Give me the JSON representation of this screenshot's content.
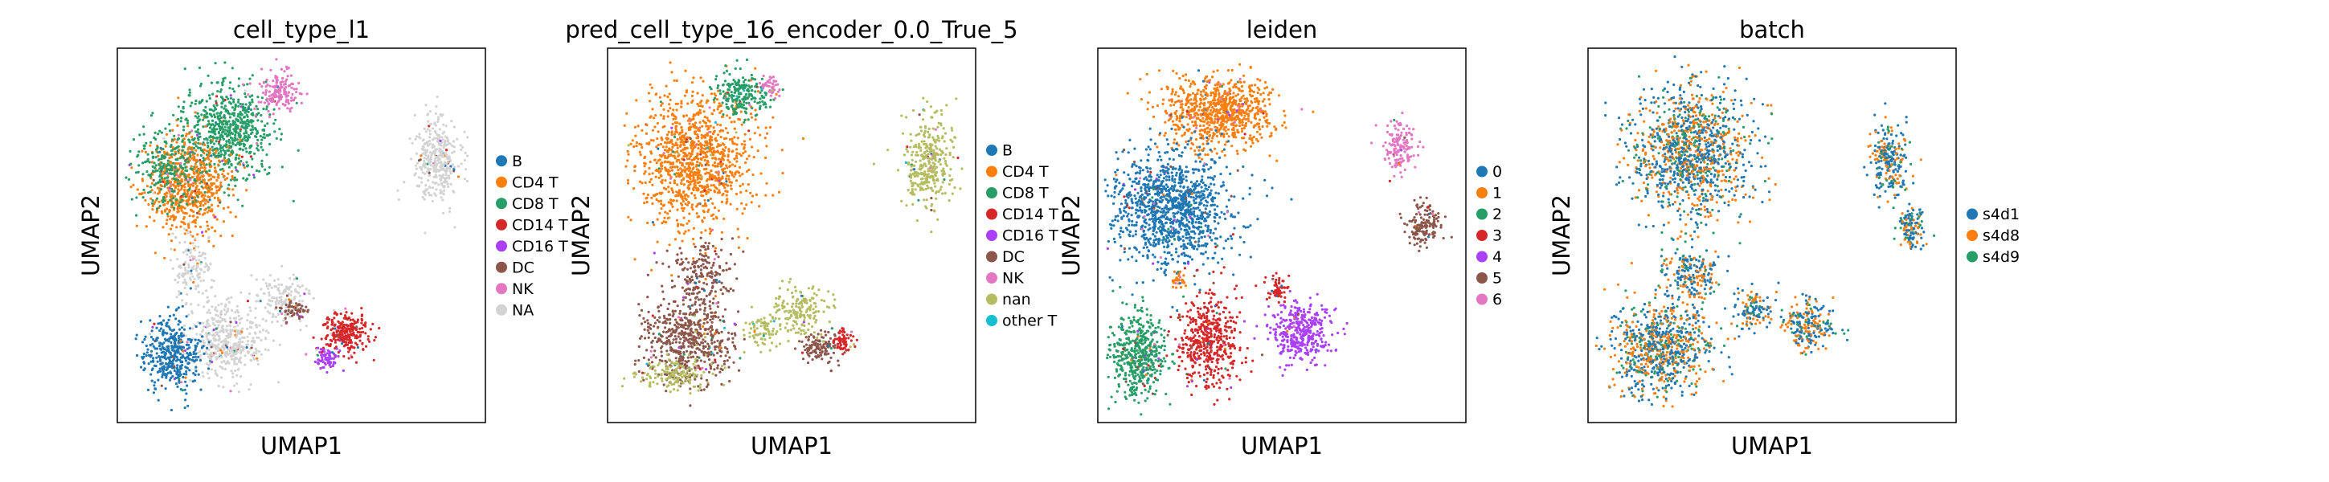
{
  "figure": {
    "background": "#ffffff"
  },
  "chart_data": [
    {
      "type": "scatter",
      "title": "cell_type_l1",
      "xlabel": "UMAP1",
      "ylabel": "UMAP2",
      "ticks": "none",
      "legend_position": "right",
      "legend": [
        {
          "label": "B",
          "color": "#1f77b4"
        },
        {
          "label": "CD4 T",
          "color": "#ff7f0e"
        },
        {
          "label": "CD8 T",
          "color": "#279e68"
        },
        {
          "label": "CD14 T",
          "color": "#d62728"
        },
        {
          "label": "CD16 T",
          "color": "#aa40fc"
        },
        {
          "label": "DC",
          "color": "#8c564b"
        },
        {
          "label": "NK",
          "color": "#e377c2"
        },
        {
          "label": "NA",
          "color": "#d3d3d3"
        }
      ],
      "clusters": [
        {
          "group": "CD8 T",
          "cx": 0.3,
          "cy": 0.78,
          "rx": 0.11,
          "ry": 0.11,
          "n": 700
        },
        {
          "group": "CD4 T",
          "cx": 0.19,
          "cy": 0.63,
          "rx": 0.1,
          "ry": 0.12,
          "n": 650
        },
        {
          "group": "CD8 T",
          "cx": 0.14,
          "cy": 0.68,
          "rx": 0.08,
          "ry": 0.1,
          "n": 250
        },
        {
          "group": "NK",
          "cx": 0.44,
          "cy": 0.88,
          "rx": 0.05,
          "ry": 0.05,
          "n": 160
        },
        {
          "group": "NA",
          "cx": 0.87,
          "cy": 0.7,
          "rx": 0.06,
          "ry": 0.11,
          "n": 360
        },
        {
          "group": "NA",
          "cx": 0.3,
          "cy": 0.22,
          "rx": 0.09,
          "ry": 0.09,
          "n": 450
        },
        {
          "group": "B",
          "cx": 0.15,
          "cy": 0.18,
          "rx": 0.07,
          "ry": 0.09,
          "n": 420
        },
        {
          "group": "NA",
          "cx": 0.45,
          "cy": 0.33,
          "rx": 0.06,
          "ry": 0.06,
          "n": 140
        },
        {
          "group": "CD14 T",
          "cx": 0.62,
          "cy": 0.24,
          "rx": 0.06,
          "ry": 0.05,
          "n": 260
        },
        {
          "group": "CD16 T",
          "cx": 0.57,
          "cy": 0.17,
          "rx": 0.03,
          "ry": 0.03,
          "n": 70
        },
        {
          "group": "DC",
          "cx": 0.48,
          "cy": 0.3,
          "rx": 0.04,
          "ry": 0.03,
          "n": 60
        },
        {
          "group": "NA",
          "cx": 0.2,
          "cy": 0.42,
          "rx": 0.05,
          "ry": 0.08,
          "n": 130
        }
      ]
    },
    {
      "type": "scatter",
      "title": "pred_cell_type_16_encoder_0.0_True_5",
      "xlabel": "UMAP1",
      "ylabel": "UMAP2",
      "ticks": "none",
      "legend_position": "right",
      "legend": [
        {
          "label": "B",
          "color": "#1f77b4"
        },
        {
          "label": "CD4 T",
          "color": "#ff7f0e"
        },
        {
          "label": "CD8 T",
          "color": "#279e68"
        },
        {
          "label": "CD14 T",
          "color": "#d62728"
        },
        {
          "label": "CD16 T",
          "color": "#aa40fc"
        },
        {
          "label": "DC",
          "color": "#8c564b"
        },
        {
          "label": "NK",
          "color": "#e377c2"
        },
        {
          "label": "nan",
          "color": "#b5bd61"
        },
        {
          "label": "other T",
          "color": "#17becf"
        }
      ],
      "clusters": [
        {
          "group": "CD4 T",
          "cx": 0.24,
          "cy": 0.7,
          "rx": 0.14,
          "ry": 0.17,
          "n": 1100
        },
        {
          "group": "CD8 T",
          "cx": 0.36,
          "cy": 0.88,
          "rx": 0.07,
          "ry": 0.06,
          "n": 220
        },
        {
          "group": "NK",
          "cx": 0.44,
          "cy": 0.9,
          "rx": 0.03,
          "ry": 0.03,
          "n": 50
        },
        {
          "group": "nan",
          "cx": 0.87,
          "cy": 0.7,
          "rx": 0.06,
          "ry": 0.11,
          "n": 360
        },
        {
          "group": "DC",
          "cx": 0.22,
          "cy": 0.22,
          "rx": 0.11,
          "ry": 0.11,
          "n": 600
        },
        {
          "group": "DC",
          "cx": 0.26,
          "cy": 0.4,
          "rx": 0.07,
          "ry": 0.07,
          "n": 180
        },
        {
          "group": "nan",
          "cx": 0.52,
          "cy": 0.3,
          "rx": 0.07,
          "ry": 0.06,
          "n": 180
        },
        {
          "group": "nan",
          "cx": 0.18,
          "cy": 0.13,
          "rx": 0.08,
          "ry": 0.04,
          "n": 150
        },
        {
          "group": "DC",
          "cx": 0.58,
          "cy": 0.2,
          "rx": 0.05,
          "ry": 0.04,
          "n": 120
        },
        {
          "group": "CD14 T",
          "cx": 0.64,
          "cy": 0.22,
          "rx": 0.03,
          "ry": 0.03,
          "n": 60
        },
        {
          "group": "nan",
          "cx": 0.42,
          "cy": 0.24,
          "rx": 0.04,
          "ry": 0.04,
          "n": 70
        }
      ]
    },
    {
      "type": "scatter",
      "title": "leiden",
      "xlabel": "UMAP1",
      "ylabel": "UMAP2",
      "ticks": "none",
      "legend_position": "right",
      "legend": [
        {
          "label": "0",
          "color": "#1f77b4"
        },
        {
          "label": "1",
          "color": "#ff7f0e"
        },
        {
          "label": "2",
          "color": "#279e68"
        },
        {
          "label": "3",
          "color": "#d62728"
        },
        {
          "label": "4",
          "color": "#aa40fc"
        },
        {
          "label": "5",
          "color": "#8c564b"
        },
        {
          "label": "6",
          "color": "#e377c2"
        }
      ],
      "clusters": [
        {
          "group": "1",
          "cx": 0.33,
          "cy": 0.83,
          "rx": 0.14,
          "ry": 0.09,
          "n": 800
        },
        {
          "group": "0",
          "cx": 0.2,
          "cy": 0.57,
          "rx": 0.15,
          "ry": 0.14,
          "n": 1200
        },
        {
          "group": "6",
          "cx": 0.82,
          "cy": 0.74,
          "rx": 0.04,
          "ry": 0.06,
          "n": 150
        },
        {
          "group": "5",
          "cx": 0.89,
          "cy": 0.53,
          "rx": 0.04,
          "ry": 0.05,
          "n": 150
        },
        {
          "group": "2",
          "cx": 0.11,
          "cy": 0.18,
          "rx": 0.07,
          "ry": 0.11,
          "n": 500
        },
        {
          "group": "3",
          "cx": 0.3,
          "cy": 0.22,
          "rx": 0.08,
          "ry": 0.11,
          "n": 480
        },
        {
          "group": "4",
          "cx": 0.55,
          "cy": 0.24,
          "rx": 0.08,
          "ry": 0.07,
          "n": 380
        },
        {
          "group": "3",
          "cx": 0.49,
          "cy": 0.36,
          "rx": 0.03,
          "ry": 0.03,
          "n": 60
        },
        {
          "group": "1",
          "cx": 0.22,
          "cy": 0.38,
          "rx": 0.02,
          "ry": 0.02,
          "n": 30
        }
      ]
    },
    {
      "type": "scatter",
      "title": "batch",
      "xlabel": "UMAP1",
      "ylabel": "UMAP2",
      "ticks": "none",
      "legend_position": "right",
      "legend": [
        {
          "label": "s4d1",
          "color": "#1f77b4"
        },
        {
          "label": "s4d8",
          "color": "#ff7f0e"
        },
        {
          "label": "s4d9",
          "color": "#279e68"
        }
      ],
      "mixed": true,
      "clusters": [
        {
          "cx": 0.28,
          "cy": 0.72,
          "rx": 0.15,
          "ry": 0.17,
          "n": 1200
        },
        {
          "cx": 0.82,
          "cy": 0.7,
          "rx": 0.05,
          "ry": 0.09,
          "n": 250
        },
        {
          "cx": 0.88,
          "cy": 0.52,
          "rx": 0.03,
          "ry": 0.05,
          "n": 120
        },
        {
          "cx": 0.2,
          "cy": 0.2,
          "rx": 0.12,
          "ry": 0.11,
          "n": 800
        },
        {
          "cx": 0.6,
          "cy": 0.26,
          "rx": 0.07,
          "ry": 0.06,
          "n": 220
        },
        {
          "cx": 0.28,
          "cy": 0.4,
          "rx": 0.07,
          "ry": 0.07,
          "n": 200
        },
        {
          "cx": 0.45,
          "cy": 0.3,
          "rx": 0.05,
          "ry": 0.05,
          "n": 120
        }
      ]
    }
  ]
}
